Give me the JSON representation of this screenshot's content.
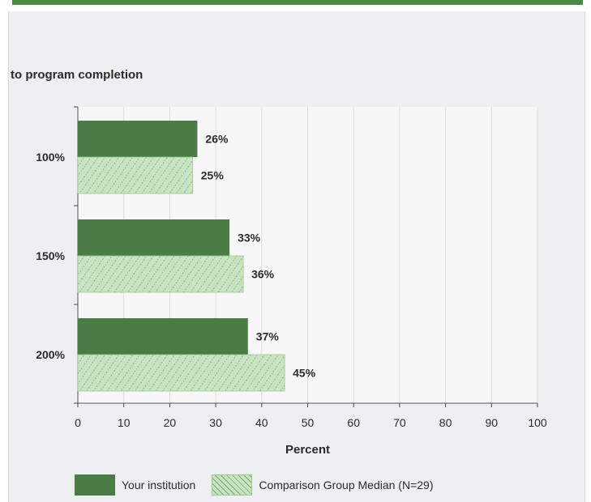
{
  "title": "to program completion",
  "colors": {
    "your_institution": "#4b7c46",
    "comparison": "#c9e4c3",
    "comparison_hatch": "#7aa872",
    "plot_background": "#f7f7f7",
    "grid": "#dcdcdc"
  },
  "chart_data": {
    "type": "bar",
    "orientation": "horizontal",
    "title": "to program completion",
    "xlabel": "Percent",
    "ylabel": "",
    "xlim": [
      0,
      100
    ],
    "x_ticks": [
      "0",
      "10",
      "20",
      "30",
      "40",
      "50",
      "60",
      "70",
      "80",
      "90",
      "100"
    ],
    "categories": [
      "100%",
      "150%",
      "200%"
    ],
    "grid": true,
    "legend_position": "bottom",
    "series": [
      {
        "name": "Your institution",
        "values": [
          26,
          33,
          37
        ],
        "labels": [
          "26%",
          "33%",
          "37%"
        ],
        "style": "solid"
      },
      {
        "name": "Comparison Group Median (N=29)",
        "values": [
          25,
          36,
          45
        ],
        "labels": [
          "25%",
          "36%",
          "45%"
        ],
        "style": "hatched"
      }
    ]
  }
}
